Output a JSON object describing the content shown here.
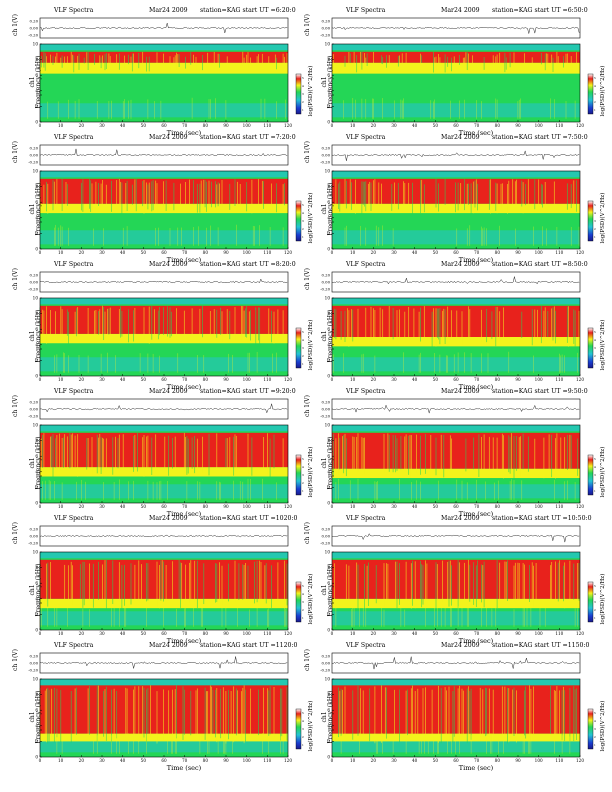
{
  "header": {
    "title": "VLF Spectra",
    "date": "Mar24 2009",
    "station_prefix": "station=KAG   start  UT  ="
  },
  "axes": {
    "xlabel": "Time  (sec)",
    "ylabel_channel": "ch 1(V)",
    "ylabel_frequency": "ch1\nFrequency  (kHz)",
    "colorbar_label": "log(PSD)(V^2/Hz)",
    "x_ticks": [
      "0",
      "10",
      "20",
      "30",
      "40",
      "50",
      "60",
      "70",
      "80",
      "90",
      "100",
      "110",
      "120"
    ],
    "freq_ticks": [
      "0",
      "2",
      "4",
      "6",
      "8",
      "10"
    ],
    "ch_ticks": [
      "0.20",
      "0.00",
      "-0.20"
    ],
    "colorbar_ticks": [
      "1",
      "2",
      "3",
      "4",
      "5"
    ]
  },
  "colors": {
    "high": "#e8221c",
    "mid_high": "#f3f31c",
    "mid": "#24d656",
    "low": "#24c3d4",
    "lowest": "#1a3cd0",
    "top_band": "#24c8b0"
  },
  "chart_data": [
    {
      "type": "heatmap",
      "title": "VLF Spectra",
      "date": "Mar24 2009",
      "start_ut": "6:20:0",
      "xlim": [
        0,
        120
      ],
      "ylim": [
        0,
        10
      ],
      "xlabel": "Time  (sec)",
      "ylabel": "Frequency  (kHz)",
      "red_band_khz": [
        7.6,
        9.0
      ],
      "yellow_band_khz": [
        6.2,
        7.6
      ]
    },
    {
      "type": "heatmap",
      "title": "VLF Spectra",
      "date": "Mar24 2009",
      "start_ut": "6:50:0",
      "xlim": [
        0,
        120
      ],
      "ylim": [
        0,
        10
      ],
      "xlabel": "Time  (sec)",
      "ylabel": "Frequency  (kHz)",
      "red_band_khz": [
        7.6,
        9.0
      ],
      "yellow_band_khz": [
        6.2,
        7.6
      ]
    },
    {
      "type": "heatmap",
      "title": "VLF Spectra",
      "date": "Mar24 2009",
      "start_ut": "7:20:0",
      "xlim": [
        0,
        120
      ],
      "ylim": [
        0,
        10
      ],
      "xlabel": "Time  (sec)",
      "ylabel": "Frequency  (kHz)",
      "red_band_khz": [
        5.8,
        9.0
      ],
      "yellow_band_khz": [
        4.6,
        5.8
      ]
    },
    {
      "type": "heatmap",
      "title": "VLF Spectra",
      "date": "Mar24 2009",
      "start_ut": "7:50:0",
      "xlim": [
        0,
        120
      ],
      "ylim": [
        0,
        10
      ],
      "xlabel": "Time  (sec)",
      "ylabel": "Frequency  (kHz)",
      "red_band_khz": [
        5.8,
        9.0
      ],
      "yellow_band_khz": [
        4.6,
        5.8
      ]
    },
    {
      "type": "heatmap",
      "title": "VLF Spectra",
      "date": "Mar24 2009",
      "start_ut": "8:20:0",
      "xlim": [
        0,
        120
      ],
      "ylim": [
        0,
        10
      ],
      "xlabel": "Time  (sec)",
      "ylabel": "Frequency  (kHz)",
      "red_band_khz": [
        5.4,
        9.0
      ],
      "yellow_band_khz": [
        4.2,
        5.4
      ]
    },
    {
      "type": "heatmap",
      "title": "VLF Spectra",
      "date": "Mar24 2009",
      "start_ut": "8:50:0",
      "xlim": [
        0,
        120
      ],
      "ylim": [
        0,
        10
      ],
      "xlabel": "Time  (sec)",
      "ylabel": "Frequency  (kHz)",
      "red_band_khz": [
        5.0,
        9.0
      ],
      "yellow_band_khz": [
        3.8,
        5.0
      ]
    },
    {
      "type": "heatmap",
      "title": "VLF Spectra",
      "date": "Mar24 2009",
      "start_ut": "9:20:0",
      "xlim": [
        0,
        120
      ],
      "ylim": [
        0,
        10
      ],
      "xlabel": "Time  (sec)",
      "ylabel": "Frequency  (kHz)",
      "red_band_khz": [
        4.6,
        9.0
      ],
      "yellow_band_khz": [
        3.4,
        4.6
      ]
    },
    {
      "type": "heatmap",
      "title": "VLF Spectra",
      "date": "Mar24 2009",
      "start_ut": "9:50:0",
      "xlim": [
        0,
        120
      ],
      "ylim": [
        0,
        10
      ],
      "xlabel": "Time  (sec)",
      "ylabel": "Frequency  (kHz)",
      "red_band_khz": [
        4.4,
        9.0
      ],
      "yellow_band_khz": [
        3.2,
        4.4
      ]
    },
    {
      "type": "heatmap",
      "title": "VLF Spectra",
      "date": "Mar24 2009",
      "start_ut": "1020:0",
      "xlim": [
        0,
        120
      ],
      "ylim": [
        0,
        10
      ],
      "xlabel": "Time  (sec)",
      "ylabel": "Frequency  (kHz)",
      "red_band_khz": [
        4.0,
        9.0
      ],
      "yellow_band_khz": [
        2.8,
        4.0
      ]
    },
    {
      "type": "heatmap",
      "title": "VLF Spectra",
      "date": "Mar24 2009",
      "start_ut": "10:50:0",
      "xlim": [
        0,
        120
      ],
      "ylim": [
        0,
        10
      ],
      "xlabel": "Time  (sec)",
      "ylabel": "Frequency  (kHz)",
      "red_band_khz": [
        4.0,
        9.0
      ],
      "yellow_band_khz": [
        2.8,
        4.0
      ]
    },
    {
      "type": "heatmap",
      "title": "VLF Spectra",
      "date": "Mar24 2009",
      "start_ut": "1120:0",
      "xlim": [
        0,
        120
      ],
      "ylim": [
        0,
        10
      ],
      "xlabel": "Time  (sec)",
      "ylabel": "Frequency  (kHz)",
      "red_band_khz": [
        3.0,
        9.2
      ],
      "yellow_band_khz": [
        2.0,
        3.0
      ]
    },
    {
      "type": "heatmap",
      "title": "VLF Spectra",
      "date": "Mar24 2009",
      "start_ut": "1150:0",
      "xlim": [
        0,
        120
      ],
      "ylim": [
        0,
        10
      ],
      "xlabel": "Time  (sec)",
      "ylabel": "Frequency  (kHz)",
      "red_band_khz": [
        3.0,
        9.2
      ],
      "yellow_band_khz": [
        2.0,
        3.0
      ]
    }
  ]
}
